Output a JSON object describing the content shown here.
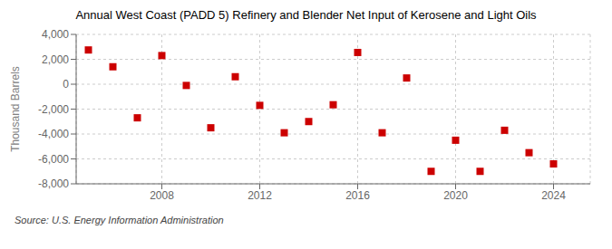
{
  "chart_data": {
    "type": "scatter",
    "title": "Annual West Coast (PADD 5) Refinery and Blender Net Input of Kerosene and Light Oils",
    "ylabel": "Thousand Barrels",
    "annotation": "Source: U.S. Energy Information Administration",
    "x": [
      2005,
      2006,
      2007,
      2008,
      2009,
      2010,
      2011,
      2012,
      2013,
      2014,
      2015,
      2016,
      2017,
      2018,
      2019,
      2020,
      2021,
      2022,
      2023,
      2024
    ],
    "values": [
      2750,
      1400,
      -2700,
      2300,
      -100,
      -3500,
      600,
      -1700,
      -3900,
      -3000,
      -1650,
      2550,
      -3900,
      500,
      -7000,
      -4500,
      -7000,
      -3700,
      -5500,
      -6400
    ],
    "color": "#cc0000",
    "marker": "square",
    "xlim": [
      2004.5,
      2025.5
    ],
    "xticks": [
      2008,
      2012,
      2016,
      2020,
      2024
    ],
    "ylim": [
      -8000,
      4000
    ],
    "yticks": [
      {
        "value": -8000,
        "label": "-8,000"
      },
      {
        "value": -6000,
        "label": "-6,000"
      },
      {
        "value": -4000,
        "label": "-4,000"
      },
      {
        "value": -2000,
        "label": "-2,000"
      },
      0,
      {
        "value": 2000,
        "label": "2,000"
      },
      {
        "value": 4000,
        "label": "4,000"
      }
    ],
    "grid": true
  }
}
